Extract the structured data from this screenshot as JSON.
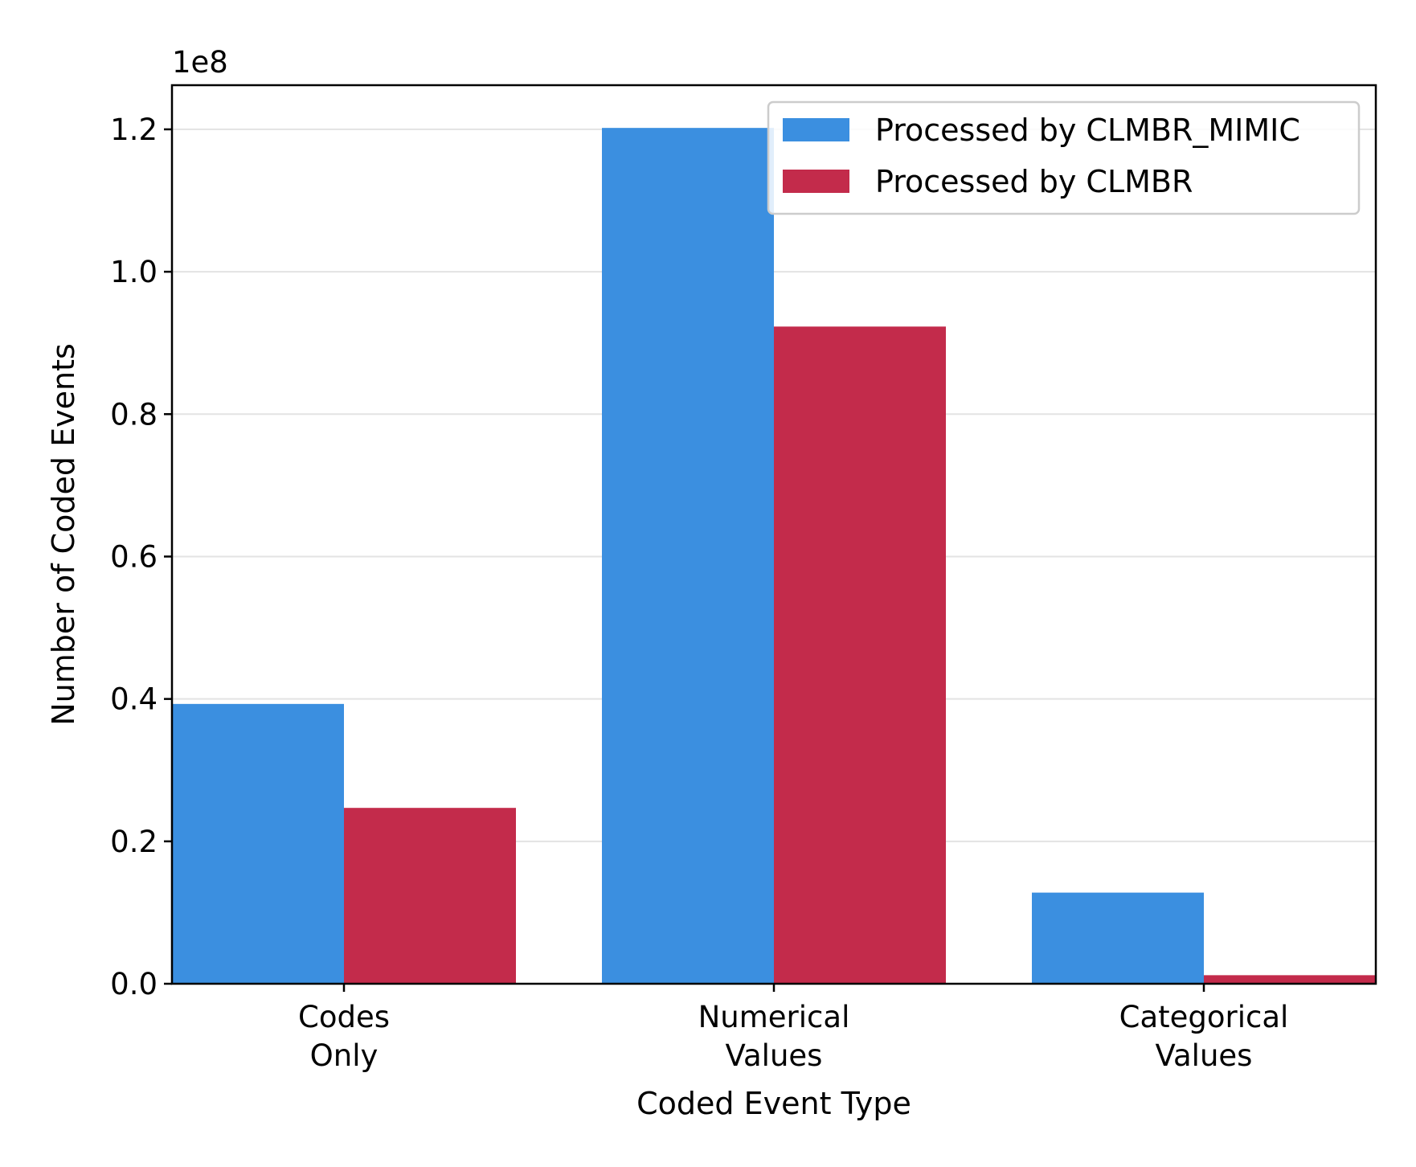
{
  "chart_data": {
    "type": "bar",
    "categories": [
      [
        "Codes",
        "Only"
      ],
      [
        "Numerical",
        "Values"
      ],
      [
        "Categorical",
        "Values"
      ]
    ],
    "series": [
      {
        "name": "Processed by CLMBR_MIMIC",
        "color": "#3b8fe0",
        "values": [
          39300000,
          120200000,
          12800000
        ]
      },
      {
        "name": "Processed by CLMBR",
        "color": "#c32b4b",
        "values": [
          24700000,
          92300000,
          1200000
        ]
      }
    ],
    "xlabel": "Coded Event Type",
    "ylabel": "Number of Coded Events",
    "ylim": [
      0,
      126200000
    ],
    "yticks": [
      0,
      20000000,
      40000000,
      60000000,
      80000000,
      100000000,
      120000000
    ],
    "ytick_labels": [
      "0.0",
      "0.2",
      "0.4",
      "0.6",
      "0.8",
      "1.0",
      "1.2"
    ],
    "y_offset_text": "1e8",
    "grid": "horizontal",
    "legend_position": "top-right"
  }
}
